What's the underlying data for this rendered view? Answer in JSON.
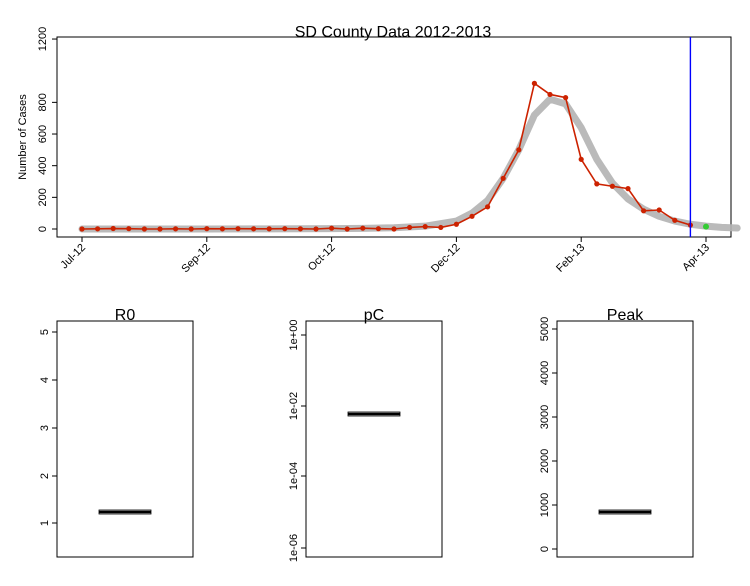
{
  "chart_data": [
    {
      "type": "line",
      "title": "SD County Data 2012-2013",
      "xlabel": "",
      "ylabel": "Number of Cases",
      "ylim": [
        0,
        1200
      ],
      "yticks": [
        0,
        200,
        400,
        600,
        800,
        1200
      ],
      "x_tick_labels": [
        "Jul-12",
        "Sep-12",
        "Oct-12",
        "Dec-12",
        "Feb-13",
        "Apr-13"
      ],
      "x_tick_weeks": [
        0,
        8,
        16,
        24,
        32,
        40
      ],
      "grid": false,
      "series": [
        {
          "kind": "observed",
          "color": "#cc2200",
          "x": [
            0,
            1,
            2,
            3,
            4,
            5,
            6,
            7,
            8,
            9,
            10,
            11,
            12,
            13,
            14,
            15,
            16,
            17,
            18,
            19,
            20,
            21,
            22,
            23,
            24,
            25,
            26,
            27,
            28,
            29,
            30,
            31,
            32,
            33,
            34,
            35,
            36,
            37,
            38,
            39
          ],
          "y": [
            0,
            1,
            3,
            2,
            0,
            0,
            1,
            0,
            2,
            1,
            2,
            1,
            1,
            2,
            1,
            0,
            5,
            0,
            5,
            2,
            0,
            10,
            15,
            10,
            30,
            80,
            140,
            320,
            500,
            920,
            850,
            830,
            440,
            285,
            270,
            255,
            115,
            120,
            55,
            25
          ]
        },
        {
          "kind": "model-fit",
          "color": "#b3b3b3",
          "x": [
            0,
            4,
            8,
            12,
            16,
            18,
            20,
            22,
            24,
            25,
            26,
            27,
            28,
            29,
            30,
            31,
            32,
            33,
            34,
            35,
            36,
            37,
            38,
            39,
            40,
            41,
            42
          ],
          "y": [
            0,
            0,
            0,
            1,
            2,
            4,
            8,
            18,
            50,
            100,
            180,
            320,
            500,
            720,
            820,
            790,
            640,
            440,
            290,
            190,
            125,
            80,
            50,
            30,
            18,
            10,
            6
          ]
        },
        {
          "kind": "forecast",
          "color": "#33cc33",
          "x": [
            40
          ],
          "y": [
            15
          ]
        }
      ],
      "vline": {
        "x": 39,
        "color": "#0000ff"
      }
    },
    {
      "type": "box",
      "title": "R0",
      "ylim": [
        0.3,
        5.2
      ],
      "yticks": [
        "1",
        "2",
        "3",
        "4",
        "5"
      ],
      "median": 1.25
    },
    {
      "type": "box",
      "title": "pC",
      "log_scale": true,
      "ylim": [
        1e-06,
        1.2
      ],
      "yticks": [
        "1e-06",
        "1e-04",
        "1e-02",
        "1e+00"
      ],
      "median": 0.004
    },
    {
      "type": "box",
      "title": "Peak",
      "ylim": [
        -80,
        5200
      ],
      "yticks": [
        "0",
        "1000",
        "2000",
        "3000",
        "4000",
        "5000"
      ],
      "median": 830
    }
  ],
  "colors": {
    "observed": "#cc2200",
    "model": "#b3b3b3",
    "forecast": "#33cc33",
    "now_line": "#0000ff"
  }
}
